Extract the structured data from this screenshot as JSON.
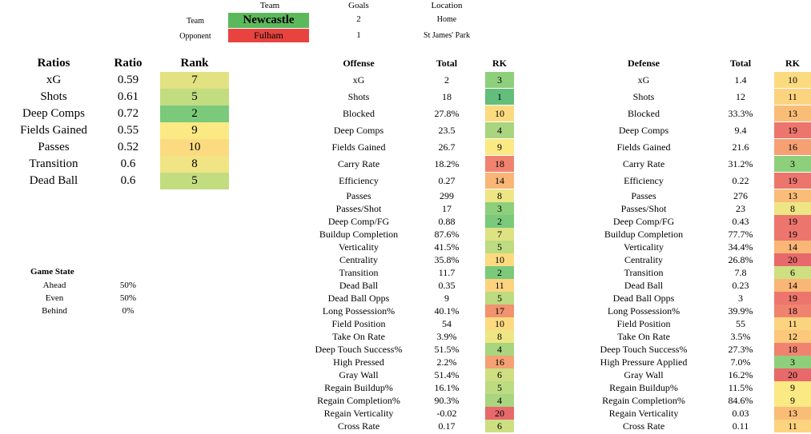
{
  "header": {
    "team_col": "Team",
    "goals_col": "Goals",
    "location_col": "Location",
    "team_label": "Team",
    "opponent_label": "Opponent",
    "team_name": "Newcastle",
    "opponent_name": "Fulham",
    "team_goals": "2",
    "opponent_goals": "1",
    "team_location": "Home",
    "opponent_location": "St James' Park",
    "team_color": "#5cb85c",
    "opponent_color": "#e8433f"
  },
  "ratios": {
    "headers": [
      "Ratios",
      "Ratio",
      "Rank"
    ],
    "rows": [
      {
        "name": "xG",
        "ratio": "0.59",
        "rank": "7",
        "color": "#e2e283"
      },
      {
        "name": "Shots",
        "ratio": "0.61",
        "rank": "5",
        "color": "#c2dc80"
      },
      {
        "name": "Deep Comps",
        "ratio": "0.72",
        "rank": "2",
        "color": "#7bc97b"
      },
      {
        "name": "Fields Gained",
        "ratio": "0.55",
        "rank": "9",
        "color": "#fbe983"
      },
      {
        "name": "Passes",
        "ratio": "0.52",
        "rank": "10",
        "color": "#fcdb80"
      },
      {
        "name": "Transition",
        "ratio": "0.6",
        "rank": "8",
        "color": "#f0e484"
      },
      {
        "name": "Dead Ball",
        "ratio": "0.6",
        "rank": "5",
        "color": "#c2dc80"
      }
    ]
  },
  "game_state": {
    "title": "Game State",
    "rows": [
      {
        "label": "Ahead",
        "value": "50%"
      },
      {
        "label": "Even",
        "value": "50%"
      },
      {
        "label": "Behind",
        "value": "0%"
      }
    ]
  },
  "offense": {
    "headers": [
      "Offense",
      "Total",
      "RK"
    ],
    "rows": [
      {
        "name": "xG",
        "total": "2",
        "rk": "3",
        "color": "#8ecf7c"
      },
      {
        "name": "Shots",
        "total": "18",
        "rk": "1",
        "color": "#63be7b"
      },
      {
        "name": "Blocked",
        "total": "27.8%",
        "rk": "10",
        "color": "#fcdb80"
      },
      {
        "name": "Deep Comps",
        "total": "23.5",
        "rk": "4",
        "color": "#a8d57e"
      },
      {
        "name": "Fields Gained",
        "total": "26.7",
        "rk": "9",
        "color": "#fbe983"
      },
      {
        "name": "Carry Rate",
        "total": "18.2%",
        "rk": "18",
        "color": "#f0836f"
      },
      {
        "name": "Efficiency",
        "total": "0.27",
        "rk": "14",
        "color": "#f9b677"
      },
      {
        "name": "Passes",
        "total": "299",
        "rk": "8",
        "color": "#eee684"
      },
      {
        "name": "Passes/Shot",
        "total": "17",
        "rk": "3",
        "color": "#8ecf7c"
      },
      {
        "name": "Deep Comp/FG",
        "total": "0.88",
        "rk": "2",
        "color": "#7bc97b"
      },
      {
        "name": "Buildup Completion",
        "total": "87.6%",
        "rk": "7",
        "color": "#dde283"
      },
      {
        "name": "Verticality",
        "total": "41.5%",
        "rk": "5",
        "color": "#bddb80"
      },
      {
        "name": "Centrality",
        "total": "35.8%",
        "rk": "10",
        "color": "#fcdb80"
      },
      {
        "name": "Transition",
        "total": "11.7",
        "rk": "2",
        "color": "#7bc97b"
      },
      {
        "name": "Dead Ball",
        "total": "0.35",
        "rk": "11",
        "color": "#fcd47f"
      },
      {
        "name": "Dead Ball Opps",
        "total": "9",
        "rk": "5",
        "color": "#bddb80"
      },
      {
        "name": "Long Possession%",
        "total": "40.1%",
        "rk": "17",
        "color": "#f2926f"
      },
      {
        "name": "Field Position",
        "total": "54",
        "rk": "10",
        "color": "#fcdb80"
      },
      {
        "name": "Take On Rate",
        "total": "3.9%",
        "rk": "8",
        "color": "#eee684"
      },
      {
        "name": "Deep Touch Success%",
        "total": "51.5%",
        "rk": "4",
        "color": "#a8d57e"
      },
      {
        "name": "High Pressed",
        "total": "2.2%",
        "rk": "16",
        "color": "#f5a173"
      },
      {
        "name": "Gray Wall",
        "total": "51.4%",
        "rk": "6",
        "color": "#cddf81"
      },
      {
        "name": "Regain Buildup%",
        "total": "16.1%",
        "rk": "5",
        "color": "#bddb80"
      },
      {
        "name": "Regain Completion%",
        "total": "90.3%",
        "rk": "4",
        "color": "#a8d57e"
      },
      {
        "name": "Regain Verticality",
        "total": "-0.02",
        "rk": "20",
        "color": "#e8696b"
      },
      {
        "name": "Cross Rate",
        "total": "0.17",
        "rk": "6",
        "color": "#cddf81"
      }
    ]
  },
  "defense": {
    "headers": [
      "Defense",
      "Total",
      "RK"
    ],
    "rows": [
      {
        "name": "xG",
        "total": "1.4",
        "rk": "10",
        "color": "#fcdb80"
      },
      {
        "name": "Shots",
        "total": "12",
        "rk": "11",
        "color": "#fcd47f"
      },
      {
        "name": "Blocked",
        "total": "33.3%",
        "rk": "13",
        "color": "#fabd78"
      },
      {
        "name": "Deep Comps",
        "total": "9.4",
        "rk": "19",
        "color": "#ec766d"
      },
      {
        "name": "Fields Gained",
        "total": "21.6",
        "rk": "16",
        "color": "#f5a173"
      },
      {
        "name": "Carry Rate",
        "total": "31.2%",
        "rk": "3",
        "color": "#8ecf7c"
      },
      {
        "name": "Efficiency",
        "total": "0.22",
        "rk": "19",
        "color": "#ec766d"
      },
      {
        "name": "Passes",
        "total": "276",
        "rk": "13",
        "color": "#fabd78"
      },
      {
        "name": "Passes/Shot",
        "total": "23",
        "rk": "8",
        "color": "#eee684"
      },
      {
        "name": "Deep Comp/FG",
        "total": "0.43",
        "rk": "19",
        "color": "#ec766d"
      },
      {
        "name": "Buildup Completion",
        "total": "77.7%",
        "rk": "19",
        "color": "#ec766d"
      },
      {
        "name": "Verticality",
        "total": "34.4%",
        "rk": "14",
        "color": "#f9b677"
      },
      {
        "name": "Centrality",
        "total": "26.8%",
        "rk": "20",
        "color": "#e8696b"
      },
      {
        "name": "Transition",
        "total": "7.8",
        "rk": "6",
        "color": "#cddf81"
      },
      {
        "name": "Dead Ball",
        "total": "0.23",
        "rk": "14",
        "color": "#f9b677"
      },
      {
        "name": "Dead Ball Opps",
        "total": "3",
        "rk": "19",
        "color": "#ec766d"
      },
      {
        "name": "Long Possession%",
        "total": "39.9%",
        "rk": "18",
        "color": "#f0836f"
      },
      {
        "name": "Field Position",
        "total": "55",
        "rk": "11",
        "color": "#fcd47f"
      },
      {
        "name": "Take On Rate",
        "total": "3.5%",
        "rk": "12",
        "color": "#fbc87c"
      },
      {
        "name": "Deep Touch Success%",
        "total": "27.3%",
        "rk": "18",
        "color": "#f0836f"
      },
      {
        "name": "High Pressure Applied",
        "total": "7.0%",
        "rk": "3",
        "color": "#8ecf7c"
      },
      {
        "name": "Gray Wall",
        "total": "16.2%",
        "rk": "20",
        "color": "#e8696b"
      },
      {
        "name": "Regain Buildup%",
        "total": "11.5%",
        "rk": "9",
        "color": "#fbe983"
      },
      {
        "name": "Regain Completion%",
        "total": "84.6%",
        "rk": "9",
        "color": "#fbe983"
      },
      {
        "name": "Regain Verticality",
        "total": "0.03",
        "rk": "13",
        "color": "#fabd78"
      },
      {
        "name": "Cross Rate",
        "total": "0.11",
        "rk": "11",
        "color": "#fcd47f"
      }
    ]
  }
}
